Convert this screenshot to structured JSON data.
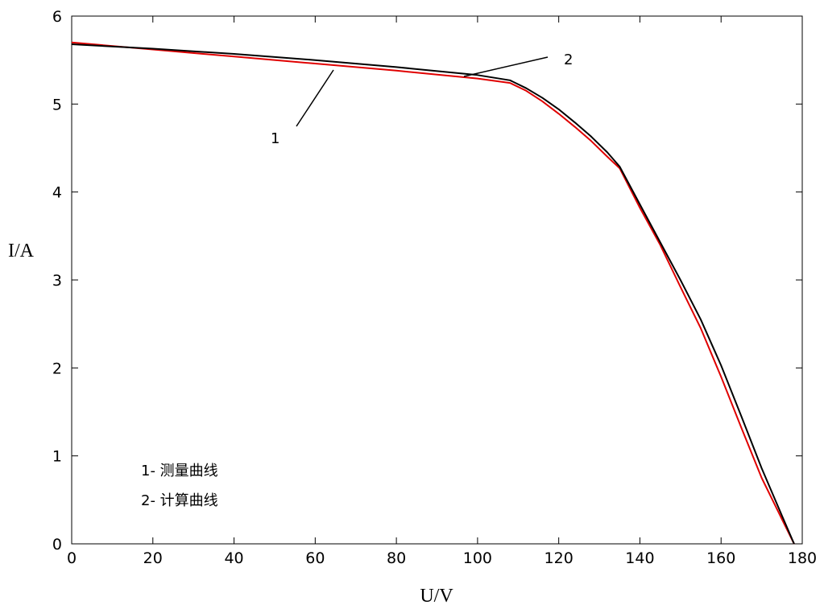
{
  "chart_data": {
    "type": "line",
    "xlabel": "U/V",
    "ylabel": "I/A",
    "xlim": [
      0,
      180
    ],
    "ylim": [
      0,
      6
    ],
    "xticks": [
      "0",
      "20",
      "40",
      "60",
      "80",
      "100",
      "120",
      "140",
      "160",
      "180"
    ],
    "yticks": [
      "0",
      "1",
      "2",
      "3",
      "4",
      "5",
      "6"
    ],
    "grid": false,
    "legend": [
      "1- 测量曲线",
      "2- 计算曲线"
    ],
    "annotations": [
      "1",
      "2"
    ],
    "series": [
      {
        "name": "1",
        "color": "#e00000",
        "x": [
          0,
          20,
          40,
          60,
          80,
          100,
          108,
          112,
          116,
          120,
          124,
          128,
          132,
          135,
          140,
          145,
          150,
          155,
          160,
          165,
          170,
          175,
          178
        ],
        "y": [
          5.7,
          5.62,
          5.54,
          5.46,
          5.38,
          5.29,
          5.24,
          5.15,
          5.03,
          4.89,
          4.74,
          4.58,
          4.4,
          4.27,
          3.82,
          3.4,
          2.92,
          2.45,
          1.9,
          1.32,
          0.75,
          0.28,
          0.0
        ]
      },
      {
        "name": "2",
        "color": "#000000",
        "x": [
          0,
          20,
          40,
          60,
          80,
          100,
          108,
          112,
          116,
          120,
          124,
          128,
          132,
          135,
          140,
          145,
          150,
          155,
          160,
          165,
          170,
          175,
          178
        ],
        "y": [
          5.68,
          5.63,
          5.57,
          5.5,
          5.42,
          5.33,
          5.27,
          5.18,
          5.07,
          4.94,
          4.79,
          4.63,
          4.45,
          4.29,
          3.86,
          3.43,
          3.0,
          2.55,
          2.03,
          1.45,
          0.86,
          0.32,
          0.0
        ]
      }
    ]
  }
}
